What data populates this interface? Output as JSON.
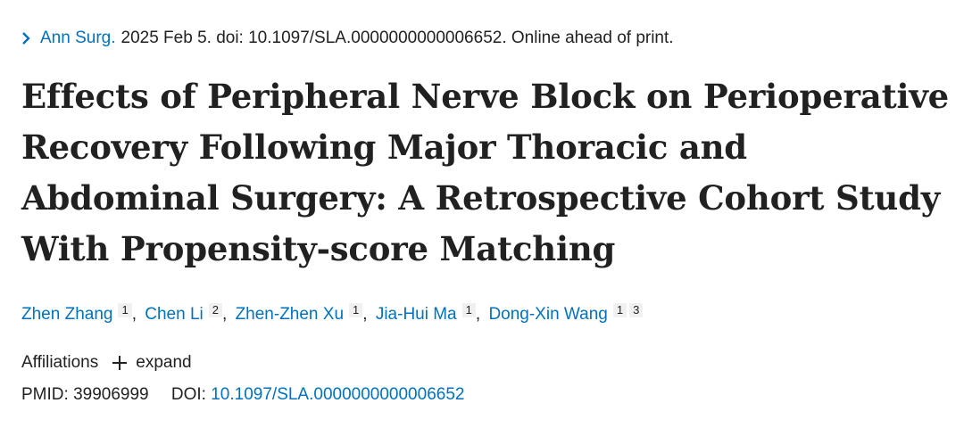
{
  "citation": {
    "journal": "Ann Surg.",
    "details": "2025 Feb 5. doi: 10.1097/SLA.0000000000006652. Online ahead of print."
  },
  "title": "Effects of Peripheral Nerve Block on Perioperative Recovery Following Major Thoracic and Abdominal Surgery: A Retrospective Cohort Study With Propensity-score Matching",
  "authors": [
    {
      "name": "Zhen Zhang",
      "affiliations": [
        "1"
      ]
    },
    {
      "name": "Chen Li",
      "affiliations": [
        "2"
      ]
    },
    {
      "name": "Zhen-Zhen Xu",
      "affiliations": [
        "1"
      ]
    },
    {
      "name": "Jia-Hui Ma",
      "affiliations": [
        "1"
      ]
    },
    {
      "name": "Dong-Xin Wang",
      "affiliations": [
        "1",
        "3"
      ]
    }
  ],
  "affiliations": {
    "label": "Affiliations",
    "expand_label": "expand"
  },
  "identifiers": {
    "pmid_label": "PMID:",
    "pmid": "39906999",
    "doi_label": "DOI:",
    "doi": "10.1097/SLA.0000000000006652"
  },
  "colors": {
    "link": "#0071bc",
    "text": "#212121"
  },
  "icons": {
    "journal": "chevron-right-icon",
    "expand": "plus-icon"
  }
}
